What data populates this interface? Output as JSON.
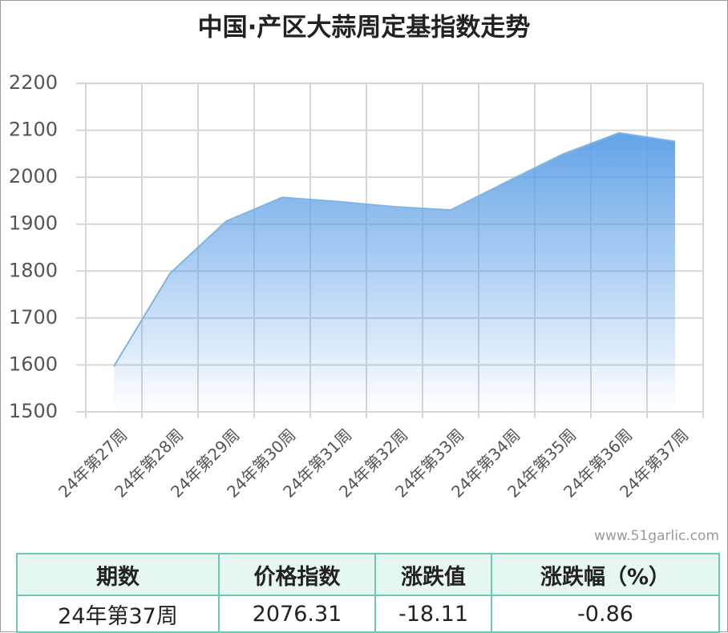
{
  "chart_data": {
    "type": "area",
    "title": "中国·产区大蒜周定基指数走势",
    "categories": [
      "24年第27周",
      "24年第28周",
      "24年第29周",
      "24年第30周",
      "24年第31周",
      "24年第32周",
      "24年第33周",
      "24年第34周",
      "24年第35周",
      "24年第36周",
      "24年第37周"
    ],
    "values": [
      1597,
      1795,
      1906,
      1957,
      1948,
      1937,
      1930,
      1990,
      2049,
      2094.42,
      2076.31
    ],
    "color": "#5b9ee6",
    "ylim": [
      1500,
      2200
    ],
    "yticks": [
      1500,
      1600,
      1700,
      1800,
      1900,
      2000,
      2100,
      2200
    ],
    "grid": true
  },
  "watermark": "www.51garlic.com",
  "table": {
    "header": [
      "期数",
      "价格指数",
      "涨跌值",
      "涨跌幅（%）"
    ],
    "rows": [
      [
        "24年第37周",
        "2076.31",
        "-18.11",
        "-0.86"
      ]
    ]
  }
}
